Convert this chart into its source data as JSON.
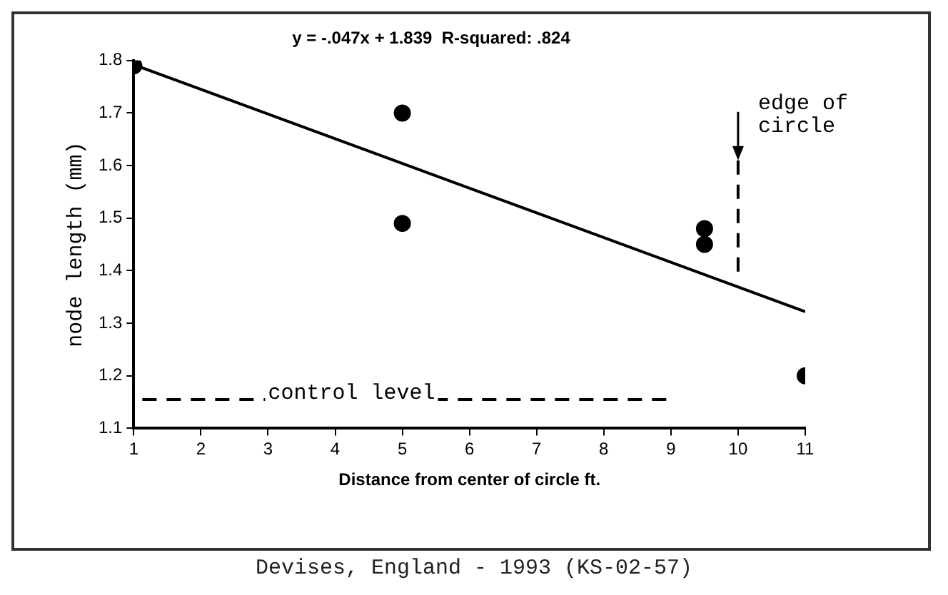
{
  "chart_data": {
    "type": "scatter",
    "title": "y = -.047x + 1.839  R-squared: .824",
    "xlabel": "Distance from center of circle ft.",
    "ylabel": "node length (mm)",
    "annotations": [
      "Devises, England - 1993  (KS-02-57)"
    ],
    "series": [
      {
        "type": "scatter",
        "color": "#000000",
        "marker": "circle",
        "x": [
          1,
          5,
          5,
          9.5,
          9.5,
          11
        ],
        "values": [
          1.79,
          1.7,
          1.49,
          1.48,
          1.45,
          1.2
        ]
      },
      {
        "type": "line",
        "color": "#000000",
        "marker": "none",
        "line_style": "solid",
        "x": [
          1,
          11
        ],
        "values": [
          1.792,
          1.322
        ]
      }
    ],
    "ref_lines": [
      {
        "axis": "y",
        "value": 1.155,
        "label": "control level",
        "line_style": "dashed",
        "color": "#000000"
      },
      {
        "axis": "x",
        "value": 10,
        "label": "edge of circle",
        "line_style": "dashed",
        "color": "#000000"
      }
    ],
    "xlim": [
      1,
      11
    ],
    "xticks": [
      1,
      2,
      3,
      4,
      5,
      6,
      7,
      8,
      9,
      10,
      11
    ],
    "ylim": [
      1.1,
      1.8
    ],
    "yticks": [
      1.1,
      1.2,
      1.3,
      1.4,
      1.5,
      1.6,
      1.7,
      1.8
    ],
    "grid": false,
    "legend": false
  }
}
